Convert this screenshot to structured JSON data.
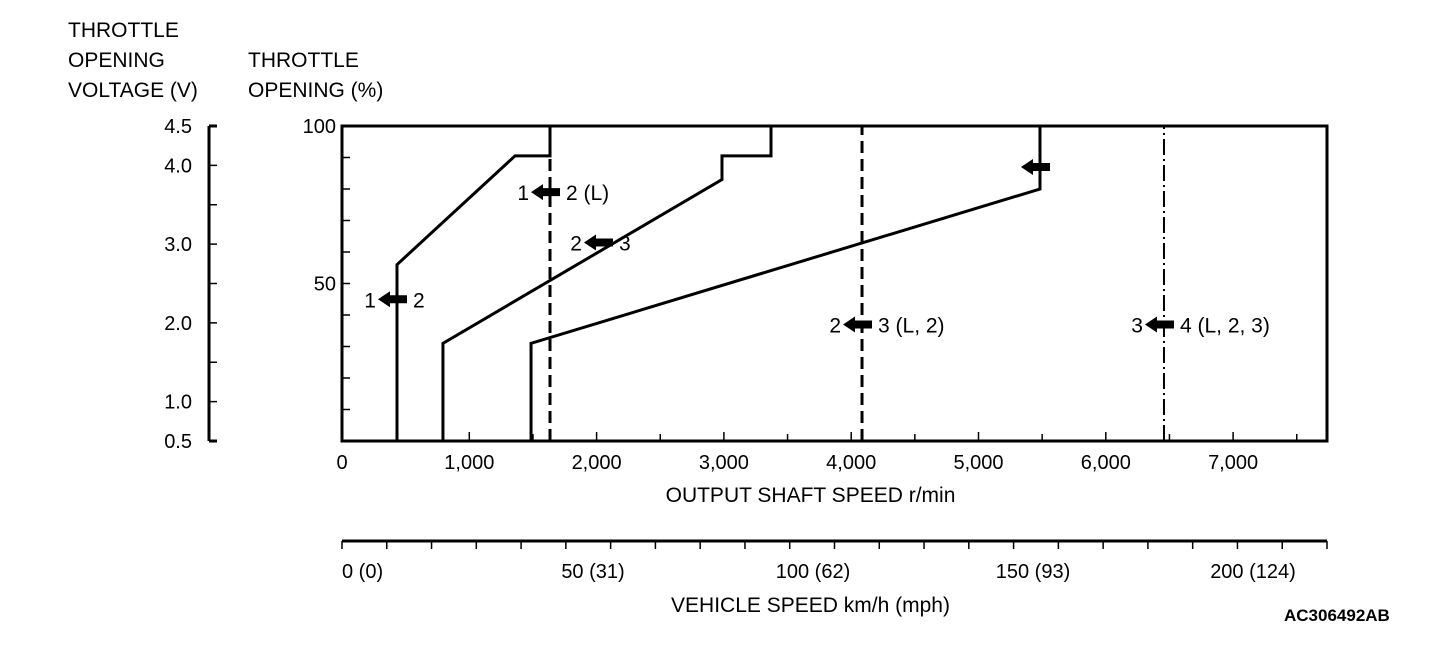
{
  "chart_data": {
    "type": "line",
    "title": "",
    "left_axis_title": [
      "THROTTLE",
      "OPENING",
      "VOLTAGE (V)"
    ],
    "ylabel_lines": [
      "THROTTLE",
      "OPENING (%)"
    ],
    "xlabel": "OUTPUT SHAFT SPEED r/min",
    "x2label": "VEHICLE SPEED km/h (mph)",
    "xlim": [
      0,
      7750
    ],
    "ylim": [
      0,
      100
    ],
    "x_ticks": [
      {
        "value": 0,
        "label": "0"
      },
      {
        "value": 1000,
        "label": "1,000"
      },
      {
        "value": 2000,
        "label": "2,000"
      },
      {
        "value": 3000,
        "label": "3,000"
      },
      {
        "value": 4000,
        "label": "4,000"
      },
      {
        "value": 5000,
        "label": "5,000"
      },
      {
        "value": 6000,
        "label": "6,000"
      },
      {
        "value": 7000,
        "label": "7,000"
      }
    ],
    "y_ticks": [
      {
        "value": 100,
        "label": "100"
      },
      {
        "value": 50,
        "label": "50"
      }
    ],
    "voltage_ticks": [
      {
        "percent": 100,
        "label": "4.5"
      },
      {
        "percent": 87.5,
        "label": "4.0"
      },
      {
        "percent": 62.5,
        "label": "3.0"
      },
      {
        "percent": 37.5,
        "label": "2.0"
      },
      {
        "percent": 12.5,
        "label": "1.0"
      },
      {
        "percent": 0,
        "label": "0.5"
      }
    ],
    "speed_ticks": [
      {
        "kmh": 0,
        "label": "0 (0)"
      },
      {
        "kmh": 50,
        "label": "50 (31)"
      },
      {
        "kmh": 100,
        "label": "100 (62)"
      },
      {
        "kmh": 150,
        "label": "150 (93)"
      },
      {
        "kmh": 200,
        "label": "200 (124)"
      }
    ],
    "series": [
      {
        "name": "1-2 upshift",
        "style": "solid",
        "points": [
          [
            432,
            0
          ],
          [
            432,
            56
          ],
          [
            1359,
            90.5
          ],
          [
            1634,
            90.5
          ],
          [
            1634,
            100
          ]
        ]
      },
      {
        "name": "2-3 upshift",
        "style": "solid",
        "points": [
          [
            793,
            0
          ],
          [
            793,
            31
          ],
          [
            2985,
            83
          ],
          [
            2985,
            90.5
          ],
          [
            3370,
            90.5
          ],
          [
            3370,
            100
          ]
        ]
      },
      {
        "name": "3-4 upshift",
        "style": "solid",
        "points": [
          [
            1485,
            0
          ],
          [
            1485,
            31
          ],
          [
            5483,
            80
          ],
          [
            5483,
            100
          ]
        ]
      },
      {
        "name": "1-2 (L) downshift",
        "style": "dashed",
        "points": [
          [
            1634,
            0
          ],
          [
            1634,
            100
          ]
        ]
      },
      {
        "name": "2-3 (L, 2) downshift",
        "style": "dashed",
        "points": [
          [
            4085,
            0
          ],
          [
            4085,
            100
          ]
        ]
      },
      {
        "name": "3-4 (L, 2, 3) downshift",
        "style": "dashdot",
        "points": [
          [
            6457,
            0
          ],
          [
            6457,
            100
          ]
        ]
      }
    ],
    "annotations": [
      {
        "from": "1",
        "to": "2",
        "rpm": 432,
        "percent": 45
      },
      {
        "from": "1",
        "to": "2 (L)",
        "rpm": 1634,
        "percent": 79
      },
      {
        "from": "2",
        "to": "3",
        "rpm": 2050,
        "percent": 63
      },
      {
        "from": "",
        "to": "",
        "rpm": 5483,
        "percent": 87
      },
      {
        "from": "2",
        "to": "3 (L, 2)",
        "rpm": 4085,
        "percent": 37
      },
      {
        "from": "3",
        "to": "4 (L, 2, 3)",
        "rpm": 6457,
        "percent": 37
      }
    ]
  },
  "figure_code": "AC306492AB"
}
